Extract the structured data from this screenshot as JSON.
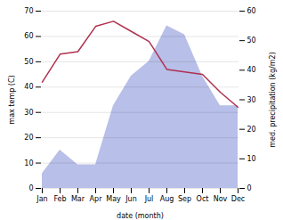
{
  "chart_data": {
    "type": "line",
    "xlabel": "date (month)",
    "ylabel": "max temp (C)",
    "y2label": "med. precipitation (kg/m2)",
    "categories": [
      "Jan",
      "Feb",
      "Mar",
      "Apr",
      "May",
      "Jun",
      "Jul",
      "Aug",
      "Sep",
      "Oct",
      "Nov",
      "Dec"
    ],
    "series": [
      {
        "name": "med. precipitation (kg/m2)",
        "type": "area",
        "axis": "y2",
        "color": "#b8bfe8",
        "values": [
          5,
          13,
          8,
          8,
          28,
          38,
          43,
          55,
          52,
          38,
          28,
          28
        ]
      },
      {
        "name": "max temp (C)",
        "type": "line",
        "color": "#b03050",
        "values": [
          42,
          53,
          54,
          64,
          66,
          62,
          58,
          47,
          46,
          45,
          38,
          32
        ]
      }
    ],
    "ylim": [
      0,
      70
    ],
    "yticks": [
      0,
      10,
      20,
      30,
      40,
      50,
      60,
      70
    ],
    "y2lim": [
      0,
      60
    ],
    "y2ticks": [
      0,
      10,
      20,
      30,
      40,
      50,
      60
    ],
    "grid": true
  }
}
